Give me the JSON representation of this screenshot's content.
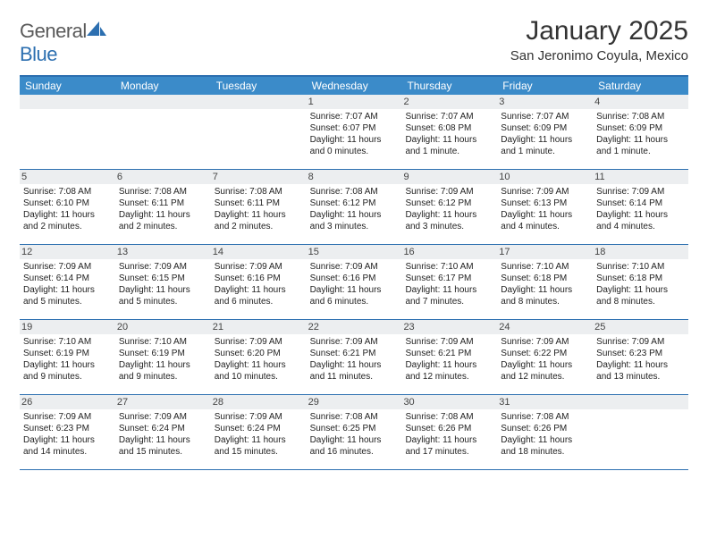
{
  "brand": {
    "part1": "General",
    "part2": "Blue"
  },
  "title": "January 2025",
  "location": "San Jeronimo Coyula, Mexico",
  "colors": {
    "header_bg": "#3b8bc9",
    "border": "#2c6fb0",
    "daynum_bg": "#eceef0",
    "text": "#222222"
  },
  "day_headers": [
    "Sunday",
    "Monday",
    "Tuesday",
    "Wednesday",
    "Thursday",
    "Friday",
    "Saturday"
  ],
  "weeks": [
    [
      {
        "n": "",
        "sr": "",
        "ss": "",
        "dl": ""
      },
      {
        "n": "",
        "sr": "",
        "ss": "",
        "dl": ""
      },
      {
        "n": "",
        "sr": "",
        "ss": "",
        "dl": ""
      },
      {
        "n": "1",
        "sr": "7:07 AM",
        "ss": "6:07 PM",
        "dl": "11 hours and 0 minutes."
      },
      {
        "n": "2",
        "sr": "7:07 AM",
        "ss": "6:08 PM",
        "dl": "11 hours and 1 minute."
      },
      {
        "n": "3",
        "sr": "7:07 AM",
        "ss": "6:09 PM",
        "dl": "11 hours and 1 minute."
      },
      {
        "n": "4",
        "sr": "7:08 AM",
        "ss": "6:09 PM",
        "dl": "11 hours and 1 minute."
      }
    ],
    [
      {
        "n": "5",
        "sr": "7:08 AM",
        "ss": "6:10 PM",
        "dl": "11 hours and 2 minutes."
      },
      {
        "n": "6",
        "sr": "7:08 AM",
        "ss": "6:11 PM",
        "dl": "11 hours and 2 minutes."
      },
      {
        "n": "7",
        "sr": "7:08 AM",
        "ss": "6:11 PM",
        "dl": "11 hours and 2 minutes."
      },
      {
        "n": "8",
        "sr": "7:08 AM",
        "ss": "6:12 PM",
        "dl": "11 hours and 3 minutes."
      },
      {
        "n": "9",
        "sr": "7:09 AM",
        "ss": "6:12 PM",
        "dl": "11 hours and 3 minutes."
      },
      {
        "n": "10",
        "sr": "7:09 AM",
        "ss": "6:13 PM",
        "dl": "11 hours and 4 minutes."
      },
      {
        "n": "11",
        "sr": "7:09 AM",
        "ss": "6:14 PM",
        "dl": "11 hours and 4 minutes."
      }
    ],
    [
      {
        "n": "12",
        "sr": "7:09 AM",
        "ss": "6:14 PM",
        "dl": "11 hours and 5 minutes."
      },
      {
        "n": "13",
        "sr": "7:09 AM",
        "ss": "6:15 PM",
        "dl": "11 hours and 5 minutes."
      },
      {
        "n": "14",
        "sr": "7:09 AM",
        "ss": "6:16 PM",
        "dl": "11 hours and 6 minutes."
      },
      {
        "n": "15",
        "sr": "7:09 AM",
        "ss": "6:16 PM",
        "dl": "11 hours and 6 minutes."
      },
      {
        "n": "16",
        "sr": "7:10 AM",
        "ss": "6:17 PM",
        "dl": "11 hours and 7 minutes."
      },
      {
        "n": "17",
        "sr": "7:10 AM",
        "ss": "6:18 PM",
        "dl": "11 hours and 8 minutes."
      },
      {
        "n": "18",
        "sr": "7:10 AM",
        "ss": "6:18 PM",
        "dl": "11 hours and 8 minutes."
      }
    ],
    [
      {
        "n": "19",
        "sr": "7:10 AM",
        "ss": "6:19 PM",
        "dl": "11 hours and 9 minutes."
      },
      {
        "n": "20",
        "sr": "7:10 AM",
        "ss": "6:19 PM",
        "dl": "11 hours and 9 minutes."
      },
      {
        "n": "21",
        "sr": "7:09 AM",
        "ss": "6:20 PM",
        "dl": "11 hours and 10 minutes."
      },
      {
        "n": "22",
        "sr": "7:09 AM",
        "ss": "6:21 PM",
        "dl": "11 hours and 11 minutes."
      },
      {
        "n": "23",
        "sr": "7:09 AM",
        "ss": "6:21 PM",
        "dl": "11 hours and 12 minutes."
      },
      {
        "n": "24",
        "sr": "7:09 AM",
        "ss": "6:22 PM",
        "dl": "11 hours and 12 minutes."
      },
      {
        "n": "25",
        "sr": "7:09 AM",
        "ss": "6:23 PM",
        "dl": "11 hours and 13 minutes."
      }
    ],
    [
      {
        "n": "26",
        "sr": "7:09 AM",
        "ss": "6:23 PM",
        "dl": "11 hours and 14 minutes."
      },
      {
        "n": "27",
        "sr": "7:09 AM",
        "ss": "6:24 PM",
        "dl": "11 hours and 15 minutes."
      },
      {
        "n": "28",
        "sr": "7:09 AM",
        "ss": "6:24 PM",
        "dl": "11 hours and 15 minutes."
      },
      {
        "n": "29",
        "sr": "7:08 AM",
        "ss": "6:25 PM",
        "dl": "11 hours and 16 minutes."
      },
      {
        "n": "30",
        "sr": "7:08 AM",
        "ss": "6:26 PM",
        "dl": "11 hours and 17 minutes."
      },
      {
        "n": "31",
        "sr": "7:08 AM",
        "ss": "6:26 PM",
        "dl": "11 hours and 18 minutes."
      },
      {
        "n": "",
        "sr": "",
        "ss": "",
        "dl": ""
      }
    ]
  ],
  "labels": {
    "sunrise": "Sunrise: ",
    "sunset": "Sunset: ",
    "daylight": "Daylight: "
  }
}
